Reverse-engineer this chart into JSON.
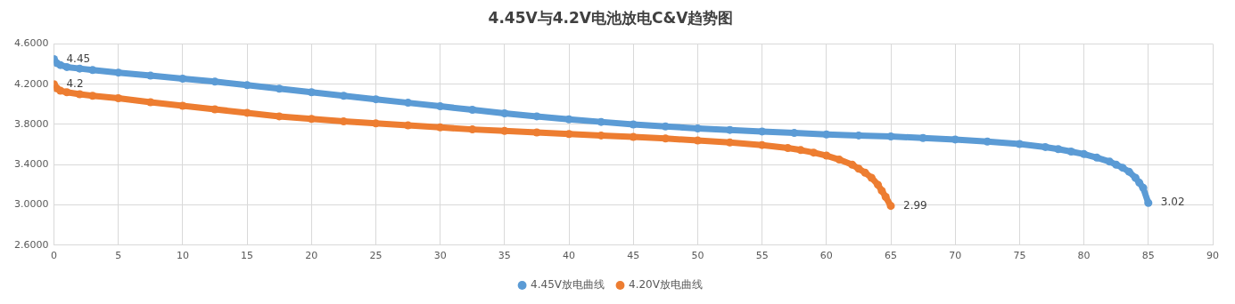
{
  "chart_data": {
    "type": "line",
    "title": "4.45V与4.2V电池放电C&V趋势图",
    "xlim": [
      0,
      90
    ],
    "xticks": [
      0,
      5,
      10,
      15,
      20,
      25,
      30,
      35,
      40,
      45,
      50,
      55,
      60,
      65,
      70,
      75,
      80,
      85,
      90
    ],
    "ylim": [
      2.6,
      4.6
    ],
    "yticks": [
      {
        "value": 2.6,
        "label": "2.6000"
      },
      {
        "value": 3.0,
        "label": "3.0000"
      },
      {
        "value": 3.4,
        "label": "3.4000"
      },
      {
        "value": 3.8,
        "label": "3.8000"
      },
      {
        "value": 4.2,
        "label": "4.2000"
      },
      {
        "value": 4.6,
        "label": "4.6000"
      }
    ],
    "grid": true,
    "legend": "bottom",
    "marker": "circle",
    "series": [
      {
        "name": "4.45V放电曲线",
        "color": "#5b9bd5",
        "x": [
          0,
          0.2,
          0.5,
          1,
          2,
          3,
          5,
          7.5,
          10,
          12.5,
          15,
          17.5,
          20,
          22.5,
          25,
          27.5,
          30,
          32.5,
          35,
          37.5,
          40,
          42.5,
          45,
          47.5,
          50,
          52.5,
          55,
          57.5,
          60,
          62.5,
          65,
          67.5,
          70,
          72.5,
          75,
          77,
          78,
          79,
          80,
          81,
          82,
          82.5,
          83,
          83.5,
          84,
          84.3,
          84.6,
          85
        ],
        "values": [
          4.45,
          4.41,
          4.39,
          4.37,
          4.355,
          4.34,
          4.315,
          4.285,
          4.255,
          4.225,
          4.19,
          4.155,
          4.12,
          4.085,
          4.05,
          4.015,
          3.98,
          3.945,
          3.91,
          3.88,
          3.85,
          3.825,
          3.8,
          3.78,
          3.76,
          3.745,
          3.73,
          3.715,
          3.7,
          3.69,
          3.68,
          3.665,
          3.65,
          3.63,
          3.605,
          3.575,
          3.555,
          3.53,
          3.505,
          3.47,
          3.43,
          3.4,
          3.37,
          3.33,
          3.27,
          3.22,
          3.17,
          3.02
        ]
      },
      {
        "name": "4.20V放电曲线",
        "color": "#ed7d31",
        "x": [
          0,
          0.2,
          0.5,
          1,
          2,
          3,
          5,
          7.5,
          10,
          12.5,
          15,
          17.5,
          20,
          22.5,
          25,
          27.5,
          30,
          32.5,
          35,
          37.5,
          40,
          42.5,
          45,
          47.5,
          50,
          52.5,
          55,
          57,
          58,
          59,
          60,
          61,
          62,
          62.5,
          63,
          63.5,
          64,
          64.3,
          64.6,
          65
        ],
        "values": [
          4.2,
          4.16,
          4.135,
          4.12,
          4.1,
          4.085,
          4.06,
          4.02,
          3.985,
          3.95,
          3.915,
          3.88,
          3.855,
          3.83,
          3.81,
          3.79,
          3.77,
          3.75,
          3.735,
          3.72,
          3.705,
          3.69,
          3.675,
          3.66,
          3.64,
          3.62,
          3.595,
          3.565,
          3.545,
          3.52,
          3.49,
          3.45,
          3.4,
          3.36,
          3.32,
          3.27,
          3.2,
          3.14,
          3.08,
          2.99
        ]
      }
    ],
    "annotations": [
      {
        "text": "4.45",
        "x": 0,
        "y": 4.45
      },
      {
        "text": "4.2",
        "x": 0,
        "y": 4.2
      },
      {
        "text": "2.99",
        "x": 65,
        "y": 2.99
      },
      {
        "text": "3.02",
        "x": 85,
        "y": 3.02
      }
    ]
  }
}
